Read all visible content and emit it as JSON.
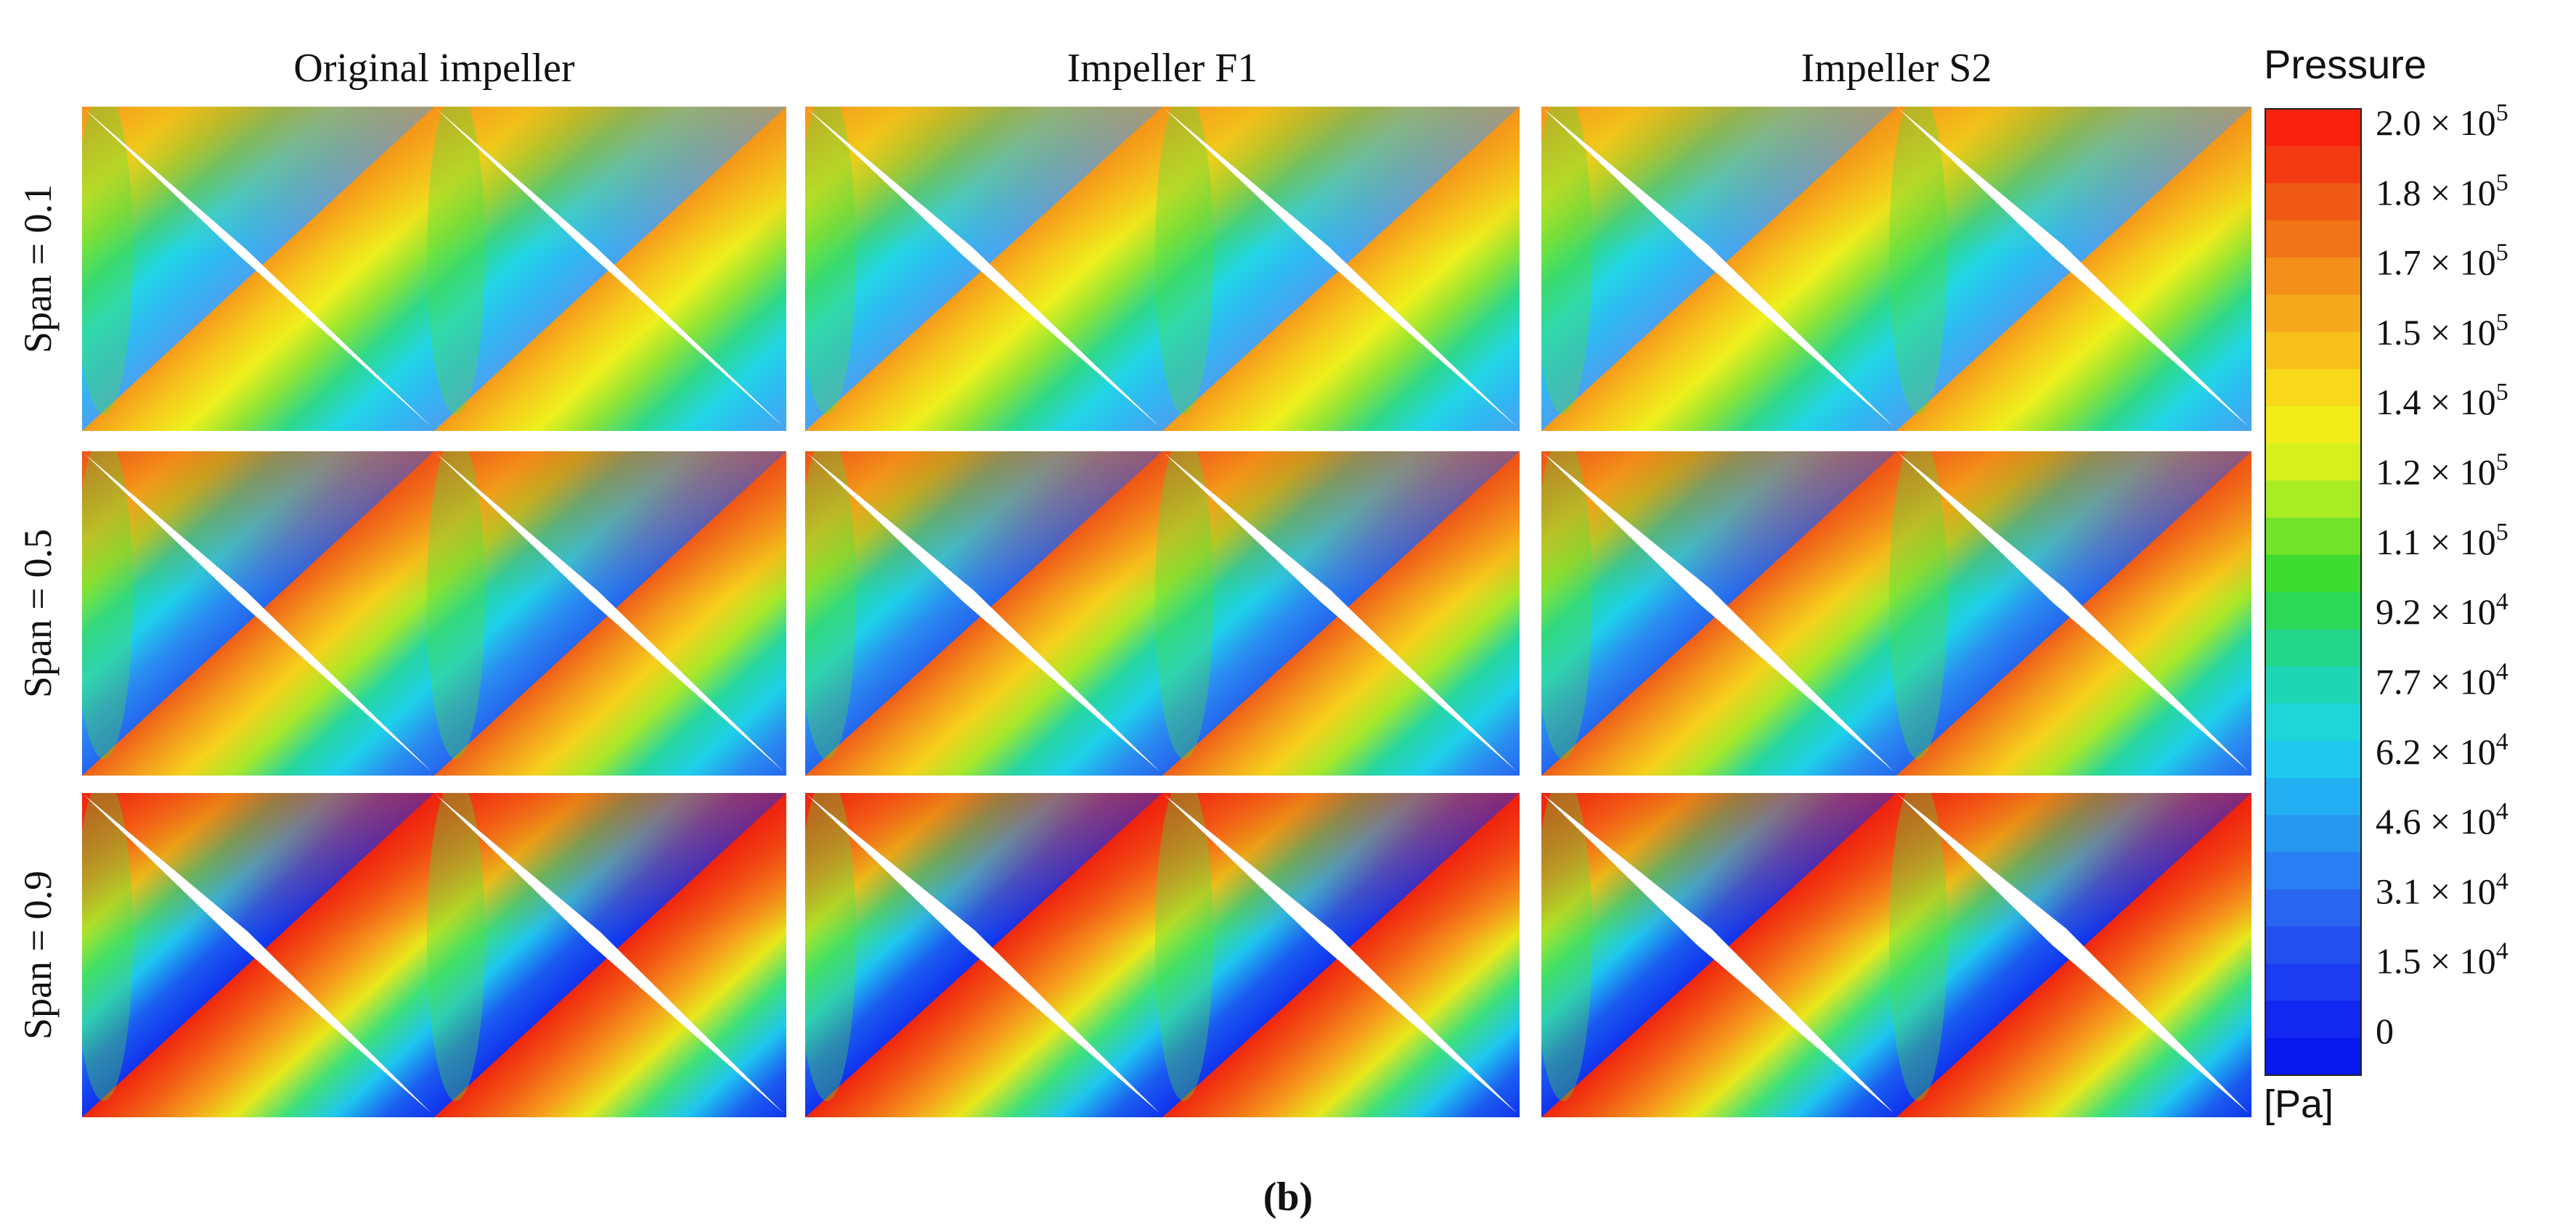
{
  "columns": [
    "Original impeller",
    "Impeller F1",
    "Impeller S2"
  ],
  "rows": [
    "Span = 0.1",
    "Span = 0.5",
    "Span = 0.9"
  ],
  "colorbar": {
    "title": "Pressure",
    "ticks": [
      {
        "base": "2.0 × 10",
        "exp": "5"
      },
      {
        "base": "1.8 × 10",
        "exp": "5"
      },
      {
        "base": "1.7 × 10",
        "exp": "5"
      },
      {
        "base": "1.5 × 10",
        "exp": "5"
      },
      {
        "base": "1.4 × 10",
        "exp": "5"
      },
      {
        "base": "1.2 × 10",
        "exp": "5"
      },
      {
        "base": "1.1 × 10",
        "exp": "5"
      },
      {
        "base": "9.2 × 10",
        "exp": "4"
      },
      {
        "base": "7.7 × 10",
        "exp": "4"
      },
      {
        "base": "6.2 × 10",
        "exp": "4"
      },
      {
        "base": "4.6 × 10",
        "exp": "4"
      },
      {
        "base": "3.1 × 10",
        "exp": "4"
      },
      {
        "base": "1.5 × 10",
        "exp": "4"
      },
      {
        "base": "0"
      }
    ],
    "unit": "[Pa]"
  },
  "caption": "(b)"
}
